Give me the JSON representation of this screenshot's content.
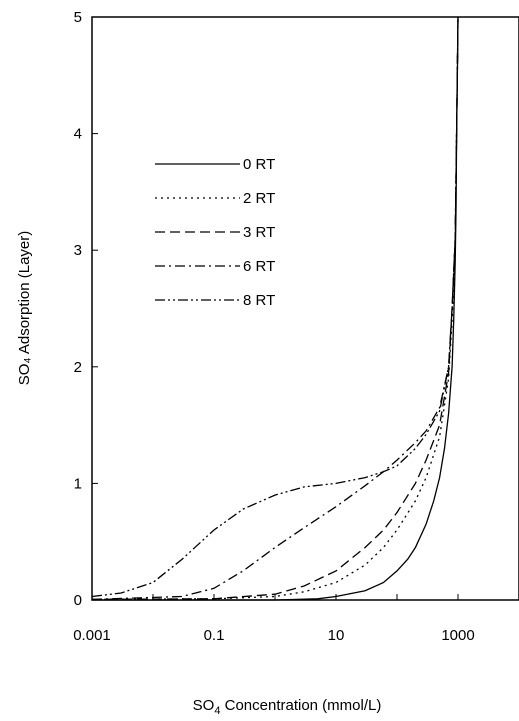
{
  "chart_data": {
    "type": "line",
    "title": "",
    "xlabel_main": "SO",
    "xlabel_sub": "4",
    "xlabel_rest": " Concentration (mmol/L)",
    "ylabel": "SO₄ Adsorption (Layer)",
    "x_scale": "log",
    "xlim": [
      0.001,
      10000
    ],
    "ylim": [
      0,
      5
    ],
    "x_ticks": [
      0.001,
      0.1,
      10,
      1000
    ],
    "x_tick_labels": [
      "0.001",
      "0.1",
      "10",
      "1000"
    ],
    "y_ticks": [
      0,
      1,
      2,
      3,
      4,
      5
    ],
    "y_tick_labels": [
      "0",
      "1",
      "2",
      "3",
      "4",
      "5"
    ],
    "grid": false,
    "legend_position": "upper-left",
    "series": [
      {
        "name": "0 RT",
        "dash": "solid",
        "x": [
          0.001,
          1,
          5,
          10,
          30,
          60,
          100,
          150,
          200,
          300,
          400,
          500,
          600,
          700,
          800,
          850,
          900,
          930,
          950,
          980,
          1000
        ],
        "y": [
          0,
          0,
          0.01,
          0.03,
          0.08,
          0.15,
          0.25,
          0.35,
          0.45,
          0.65,
          0.85,
          1.05,
          1.3,
          1.6,
          2.0,
          2.4,
          2.9,
          3.4,
          4.0,
          4.6,
          5.0
        ]
      },
      {
        "name": "2 RT",
        "dash": "dot",
        "x": [
          0.001,
          0.1,
          1,
          3,
          10,
          30,
          60,
          100,
          200,
          300,
          500,
          700,
          800,
          900,
          950,
          1000
        ],
        "y": [
          0.005,
          0.01,
          0.03,
          0.07,
          0.15,
          0.3,
          0.45,
          0.6,
          0.85,
          1.05,
          1.4,
          1.9,
          2.4,
          3.0,
          4.0,
          5.0
        ]
      },
      {
        "name": "3 RT",
        "dash": "dash",
        "x": [
          0.001,
          0.1,
          1,
          3,
          10,
          30,
          60,
          100,
          200,
          300,
          500,
          700,
          800,
          900,
          950,
          1000
        ],
        "y": [
          0.005,
          0.01,
          0.05,
          0.12,
          0.25,
          0.45,
          0.6,
          0.75,
          1.0,
          1.2,
          1.5,
          1.95,
          2.5,
          3.1,
          4.0,
          5.0
        ]
      },
      {
        "name": "6 RT",
        "dash": "dashdot",
        "x": [
          0.001,
          0.03,
          0.1,
          0.3,
          1,
          3,
          10,
          30,
          60,
          100,
          200,
          300,
          500,
          700,
          800,
          900,
          950,
          1000
        ],
        "y": [
          0.005,
          0.03,
          0.1,
          0.25,
          0.45,
          0.62,
          0.8,
          0.98,
          1.1,
          1.2,
          1.35,
          1.45,
          1.65,
          2.0,
          2.5,
          3.1,
          4.0,
          5.0
        ]
      },
      {
        "name": "8 RT",
        "dash": "dashdotdot",
        "x": [
          0.001,
          0.003,
          0.01,
          0.03,
          0.1,
          0.3,
          1,
          3,
          10,
          30,
          60,
          100,
          200,
          300,
          500,
          700,
          800,
          900,
          950,
          1000
        ],
        "y": [
          0.03,
          0.06,
          0.15,
          0.35,
          0.6,
          0.78,
          0.9,
          0.97,
          1.0,
          1.05,
          1.1,
          1.15,
          1.3,
          1.42,
          1.62,
          2.0,
          2.5,
          3.1,
          4.0,
          5.0
        ]
      }
    ]
  }
}
